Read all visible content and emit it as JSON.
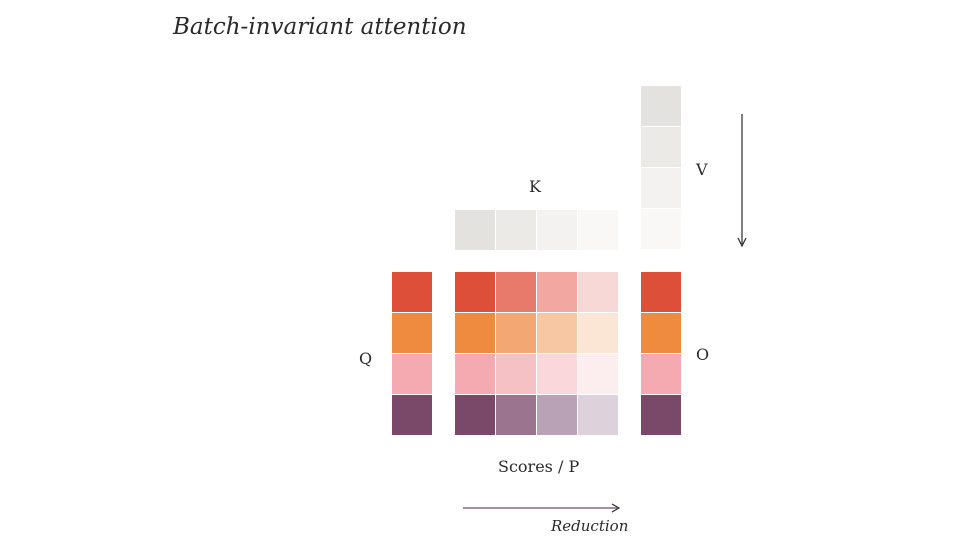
{
  "title": "Batch-invariant attention",
  "labels": {
    "q": "Q",
    "k": "K",
    "v": "V",
    "o": "O",
    "scores": "Scores / P",
    "reduction": "Reduction"
  },
  "colors": {
    "row_colors": [
      "#de4f3a",
      "#ef8b3f",
      "#f4aab0",
      "#7a4868"
    ],
    "score_row_shades": [
      [
        "#de4f3a",
        "#e87a6b",
        "#f2a8a0",
        "#f7d8d6"
      ],
      [
        "#ef8b3f",
        "#f3a874",
        "#f7c6a3",
        "#fbe5d4"
      ],
      [
        "#f4aab0",
        "#f6c1c5",
        "#f9d7da",
        "#fceeef"
      ],
      [
        "#7a4868",
        "#9b7490",
        "#b9a2b5",
        "#ddd1dc"
      ]
    ],
    "k_shades": [
      "#e4e2df",
      "#eceae6",
      "#f3f2f0",
      "#f9f8f7"
    ],
    "v_shades": [
      "#e4e2df",
      "#eceae6",
      "#f3f2f0",
      "#f9f8f7"
    ],
    "arrow": "#2b2b2b",
    "reduction_arrow": "#8a6a80"
  }
}
